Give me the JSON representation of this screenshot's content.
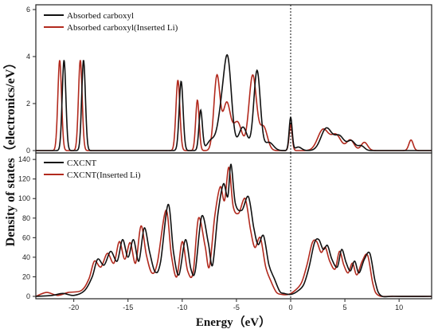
{
  "colors": {
    "series_black": "#111111",
    "series_red": "#b22a1e",
    "frame": "#222222"
  },
  "chart_data": [
    {
      "type": "line",
      "panel": "top",
      "xlabel": "",
      "ylabel": "",
      "xlim": [
        -23.5,
        13.0
      ],
      "ylim": [
        0,
        6
      ],
      "yticks": [
        0,
        2,
        4,
        6
      ],
      "vline_x": 0,
      "legend_position": "top-left",
      "series": [
        {
          "name": "Absorbed carboxyl",
          "color": "#111111",
          "peaks": [
            [
              -20.9,
              3.85,
              0.17
            ],
            [
              -19.1,
              3.85,
              0.17
            ],
            [
              -10.1,
              2.95,
              0.18
            ],
            [
              -8.3,
              1.7,
              0.16
            ],
            [
              -7.3,
              0.45,
              0.4
            ],
            [
              -6.4,
              1.4,
              0.35
            ],
            [
              -5.8,
              3.7,
              0.35
            ],
            [
              -4.4,
              1.0,
              0.4
            ],
            [
              -3.1,
              3.4,
              0.3
            ],
            [
              -2.0,
              0.35,
              0.4
            ],
            [
              0.0,
              1.4,
              0.14
            ],
            [
              0.7,
              0.15,
              0.3
            ],
            [
              3.3,
              0.95,
              0.5
            ],
            [
              4.5,
              0.6,
              0.45
            ],
            [
              5.6,
              0.4,
              0.35
            ],
            [
              6.5,
              0.2,
              0.3
            ]
          ]
        },
        {
          "name": "Absorbed carboxyl(Inserted Li)",
          "color": "#b22a1e",
          "peaks": [
            [
              -21.3,
              3.85,
              0.17
            ],
            [
              -19.4,
              3.85,
              0.17
            ],
            [
              -10.4,
              3.0,
              0.18
            ],
            [
              -8.6,
              2.15,
              0.16
            ],
            [
              -6.8,
              3.15,
              0.28
            ],
            [
              -5.9,
              2.0,
              0.35
            ],
            [
              -4.9,
              1.2,
              0.4
            ],
            [
              -3.5,
              3.2,
              0.35
            ],
            [
              -2.5,
              1.0,
              0.35
            ],
            [
              0.0,
              1.1,
              0.14
            ],
            [
              3.0,
              0.9,
              0.5
            ],
            [
              4.2,
              0.65,
              0.45
            ],
            [
              5.5,
              0.45,
              0.35
            ],
            [
              6.8,
              0.35,
              0.3
            ],
            [
              11.1,
              0.45,
              0.2
            ]
          ]
        }
      ]
    },
    {
      "type": "line",
      "panel": "bottom",
      "xlabel": "Energy（eV）",
      "ylabel": "",
      "xlim": [
        -23.5,
        13.0
      ],
      "ylim": [
        0,
        145
      ],
      "xticks": [
        -20,
        -15,
        -10,
        -5,
        0,
        5,
        10
      ],
      "yticks": [
        0,
        20,
        40,
        60,
        80,
        100,
        120,
        140
      ],
      "vline_x": 0,
      "legend_position": "top-left",
      "series": [
        {
          "name": "CXCNT",
          "color": "#111111",
          "points": [
            [
              -23.5,
              0
            ],
            [
              -22.0,
              1
            ],
            [
              -21.0,
              3
            ],
            [
              -20.0,
              1
            ],
            [
              -19.0,
              6
            ],
            [
              -18.3,
              20
            ],
            [
              -17.8,
              38
            ],
            [
              -17.2,
              32
            ],
            [
              -16.6,
              46
            ],
            [
              -16.0,
              36
            ],
            [
              -15.5,
              58
            ],
            [
              -15.0,
              40
            ],
            [
              -14.5,
              58
            ],
            [
              -14.0,
              36
            ],
            [
              -13.5,
              70
            ],
            [
              -13.0,
              45
            ],
            [
              -12.5,
              25
            ],
            [
              -12.0,
              35
            ],
            [
              -11.3,
              94
            ],
            [
              -10.8,
              45
            ],
            [
              -10.3,
              22
            ],
            [
              -9.7,
              58
            ],
            [
              -9.2,
              28
            ],
            [
              -8.8,
              26
            ],
            [
              -8.2,
              82
            ],
            [
              -7.6,
              55
            ],
            [
              -7.2,
              32
            ],
            [
              -6.7,
              85
            ],
            [
              -6.2,
              115
            ],
            [
              -5.8,
              102
            ],
            [
              -5.5,
              135
            ],
            [
              -5.1,
              95
            ],
            [
              -4.5,
              88
            ],
            [
              -3.9,
              102
            ],
            [
              -3.4,
              70
            ],
            [
              -3.0,
              53
            ],
            [
              -2.5,
              62
            ],
            [
              -2.0,
              32
            ],
            [
              -1.5,
              18
            ],
            [
              -1.0,
              5
            ],
            [
              -0.6,
              3
            ],
            [
              0.0,
              2
            ],
            [
              0.6,
              5
            ],
            [
              1.2,
              12
            ],
            [
              1.7,
              30
            ],
            [
              2.2,
              55
            ],
            [
              2.6,
              58
            ],
            [
              3.0,
              48
            ],
            [
              3.4,
              52
            ],
            [
              3.8,
              38
            ],
            [
              4.3,
              30
            ],
            [
              4.7,
              48
            ],
            [
              5.1,
              35
            ],
            [
              5.5,
              26
            ],
            [
              5.9,
              36
            ],
            [
              6.3,
              24
            ],
            [
              6.8,
              38
            ],
            [
              7.3,
              44
            ],
            [
              7.8,
              15
            ],
            [
              8.3,
              1
            ],
            [
              9.5,
              0
            ],
            [
              13.0,
              0
            ]
          ]
        },
        {
          "name": "CXCNT(Inserted Li)",
          "color": "#b22a1e",
          "points": [
            [
              -23.5,
              0
            ],
            [
              -22.5,
              4
            ],
            [
              -21.5,
              1
            ],
            [
              -20.5,
              4
            ],
            [
              -19.3,
              6
            ],
            [
              -18.6,
              18
            ],
            [
              -18.1,
              36
            ],
            [
              -17.5,
              30
            ],
            [
              -16.9,
              44
            ],
            [
              -16.3,
              34
            ],
            [
              -15.8,
              56
            ],
            [
              -15.3,
              38
            ],
            [
              -14.8,
              55
            ],
            [
              -14.3,
              34
            ],
            [
              -13.8,
              72
            ],
            [
              -13.3,
              42
            ],
            [
              -12.8,
              24
            ],
            [
              -12.3,
              34
            ],
            [
              -11.5,
              88
            ],
            [
              -11.0,
              42
            ],
            [
              -10.5,
              20
            ],
            [
              -10.0,
              56
            ],
            [
              -9.5,
              26
            ],
            [
              -9.0,
              24
            ],
            [
              -8.5,
              80
            ],
            [
              -7.9,
              52
            ],
            [
              -7.5,
              30
            ],
            [
              -7.0,
              82
            ],
            [
              -6.5,
              112
            ],
            [
              -6.1,
              98
            ],
            [
              -5.7,
              132
            ],
            [
              -5.3,
              92
            ],
            [
              -4.8,
              85
            ],
            [
              -4.2,
              100
            ],
            [
              -3.7,
              68
            ],
            [
              -3.3,
              50
            ],
            [
              -2.8,
              60
            ],
            [
              -2.3,
              30
            ],
            [
              -1.8,
              15
            ],
            [
              -1.3,
              4
            ],
            [
              -0.8,
              2
            ],
            [
              -0.2,
              2
            ],
            [
              0.4,
              6
            ],
            [
              1.0,
              14
            ],
            [
              1.5,
              32
            ],
            [
              2.0,
              55
            ],
            [
              2.4,
              56
            ],
            [
              2.8,
              45
            ],
            [
              3.2,
              50
            ],
            [
              3.6,
              36
            ],
            [
              4.1,
              28
            ],
            [
              4.5,
              46
            ],
            [
              4.9,
              32
            ],
            [
              5.3,
              24
            ],
            [
              5.7,
              34
            ],
            [
              6.1,
              22
            ],
            [
              6.6,
              36
            ],
            [
              7.1,
              42
            ],
            [
              7.6,
              12
            ],
            [
              8.1,
              1
            ],
            [
              9.5,
              0
            ],
            [
              13.0,
              0
            ]
          ]
        }
      ]
    }
  ],
  "labels": {
    "shared_ylabel": "Density of states（electronics/eV）",
    "xlabel": "Energy（eV）"
  }
}
